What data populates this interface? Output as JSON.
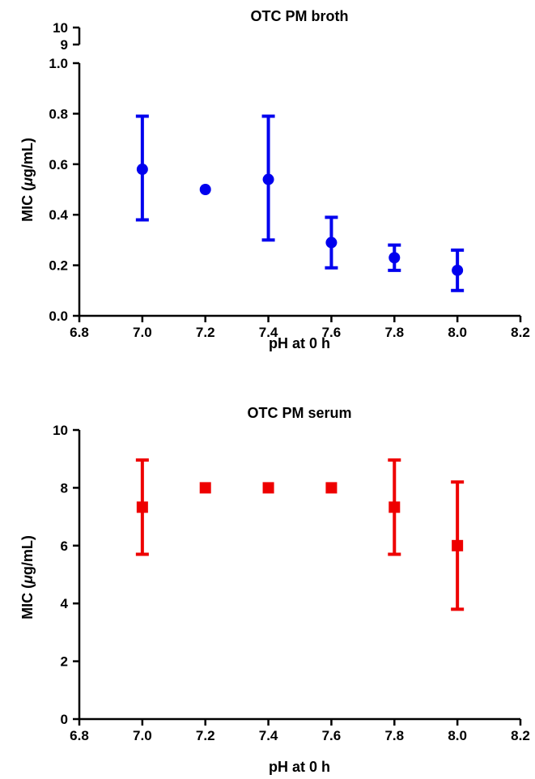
{
  "chart_data": [
    {
      "type": "scatter",
      "title": "OTC PM broth",
      "xlabel": "pH at 0 h",
      "ylabel_prefix": "MIC (",
      "ylabel_mu": "μ",
      "ylabel_suffix": "g/mL)",
      "xlim": [
        6.8,
        8.2
      ],
      "xticks": [
        "6.8",
        "7.0",
        "7.2",
        "7.4",
        "7.6",
        "7.8",
        "8.0",
        "8.2"
      ],
      "ylim": [
        0,
        1.0
      ],
      "yticks": [
        "0.0",
        "0.2",
        "0.4",
        "0.6",
        "0.8",
        "1.0"
      ],
      "y_axis_break": true,
      "y_break_ticks": [
        "9",
        "10"
      ],
      "marker": "circle",
      "color": "#0000ee",
      "series": [
        {
          "points": [
            {
              "x": 7.0,
              "y": 0.58,
              "err_low": 0.38,
              "err_high": 0.79
            },
            {
              "x": 7.2,
              "y": 0.5
            },
            {
              "x": 7.4,
              "y": 0.54,
              "err_low": 0.3,
              "err_high": 0.79
            },
            {
              "x": 7.6,
              "y": 0.29,
              "err_low": 0.19,
              "err_high": 0.39
            },
            {
              "x": 7.8,
              "y": 0.23,
              "err_low": 0.18,
              "err_high": 0.28
            },
            {
              "x": 8.0,
              "y": 0.18,
              "err_low": 0.1,
              "err_high": 0.26
            }
          ]
        }
      ]
    },
    {
      "type": "scatter",
      "title": "OTC PM serum",
      "xlabel": "pH at 0 h",
      "ylabel_prefix": "MIC (",
      "ylabel_mu": "μ",
      "ylabel_suffix": "g/mL)",
      "xlim": [
        6.8,
        8.2
      ],
      "xticks": [
        "6.8",
        "7.0",
        "7.2",
        "7.4",
        "7.6",
        "7.8",
        "8.0",
        "8.2"
      ],
      "ylim": [
        0,
        10
      ],
      "yticks": [
        "0",
        "2",
        "4",
        "6",
        "8",
        "10"
      ],
      "marker": "square",
      "color": "#ee0000",
      "series": [
        {
          "points": [
            {
              "x": 7.0,
              "y": 7.33,
              "err_low": 5.7,
              "err_high": 8.96
            },
            {
              "x": 7.2,
              "y": 8.0
            },
            {
              "x": 7.4,
              "y": 8.0
            },
            {
              "x": 7.6,
              "y": 8.0
            },
            {
              "x": 7.8,
              "y": 7.33,
              "err_low": 5.7,
              "err_high": 8.96
            },
            {
              "x": 8.0,
              "y": 6.0,
              "err_low": 3.8,
              "err_high": 8.2
            }
          ]
        }
      ]
    }
  ]
}
